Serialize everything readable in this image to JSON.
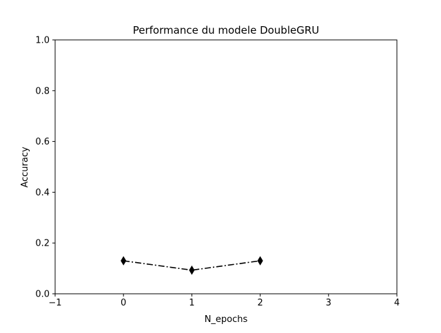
{
  "chart_data": {
    "type": "line",
    "title": "Performance du modele DoubleGRU",
    "xlabel": "N_epochs",
    "ylabel": "Accuracy",
    "xlim": [
      -1,
      4
    ],
    "ylim": [
      0.0,
      1.0
    ],
    "xticks": [
      -1,
      0,
      1,
      2,
      3,
      4
    ],
    "xtick_labels": [
      "−1",
      "0",
      "1",
      "2",
      "3",
      "4"
    ],
    "yticks": [
      0.0,
      0.2,
      0.4,
      0.6,
      0.8,
      1.0
    ],
    "ytick_labels": [
      "0.0",
      "0.2",
      "0.4",
      "0.6",
      "0.8",
      "1.0"
    ],
    "grid": false,
    "series": [
      {
        "x": [
          0,
          1,
          2
        ],
        "values": [
          0.13,
          0.093,
          0.13
        ],
        "color": "#000000",
        "line_style": "dash-dot",
        "marker": "thin-diamond"
      }
    ]
  }
}
